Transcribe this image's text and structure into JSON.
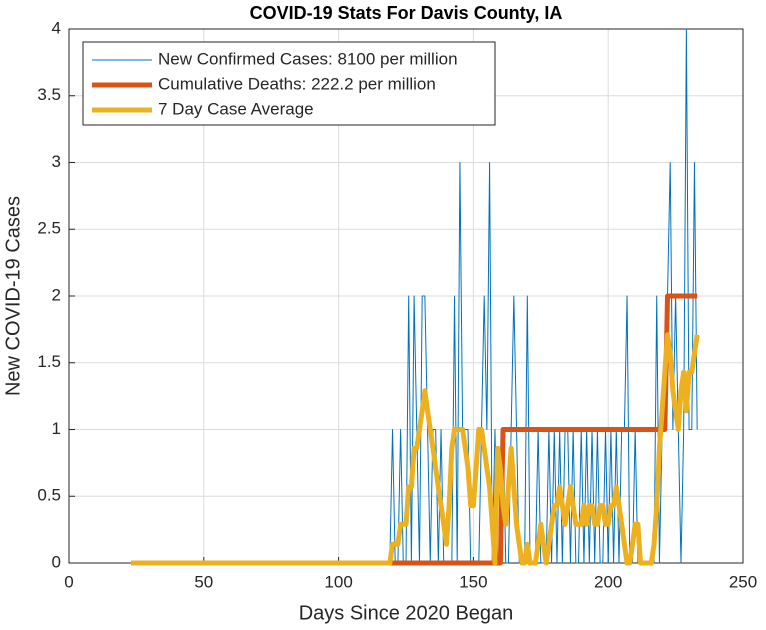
{
  "chart_data": {
    "type": "line",
    "title": "COVID-19 Stats For Davis County, IA",
    "xlabel": "Days Since 2020 Began",
    "ylabel": "New COVID-19 Cases",
    "xlim": [
      0,
      250
    ],
    "xticks": [
      0,
      50,
      100,
      150,
      200,
      250
    ],
    "ylim": [
      0,
      4
    ],
    "yticks": [
      0,
      0.5,
      1,
      1.5,
      2,
      2.5,
      3,
      3.5,
      4
    ],
    "grid": true,
    "legend": "upper left",
    "x": [
      23,
      24,
      25,
      26,
      27,
      28,
      29,
      30,
      31,
      32,
      33,
      34,
      35,
      36,
      37,
      38,
      39,
      40,
      41,
      42,
      43,
      44,
      45,
      46,
      47,
      48,
      49,
      50,
      51,
      52,
      53,
      54,
      55,
      56,
      57,
      58,
      59,
      60,
      61,
      62,
      63,
      64,
      65,
      66,
      67,
      68,
      69,
      70,
      71,
      72,
      73,
      74,
      75,
      76,
      77,
      78,
      79,
      80,
      81,
      82,
      83,
      84,
      85,
      86,
      87,
      88,
      89,
      90,
      91,
      92,
      93,
      94,
      95,
      96,
      97,
      98,
      99,
      100,
      101,
      102,
      103,
      104,
      105,
      106,
      107,
      108,
      109,
      110,
      111,
      112,
      113,
      114,
      115,
      116,
      117,
      118,
      119,
      120,
      121,
      122,
      123,
      124,
      125,
      126,
      127,
      128,
      129,
      130,
      131,
      132,
      133,
      134,
      135,
      136,
      137,
      138,
      139,
      140,
      141,
      142,
      143,
      144,
      145,
      146,
      147,
      148,
      149,
      150,
      151,
      152,
      153,
      154,
      155,
      156,
      157,
      158,
      159,
      160,
      161,
      162,
      163,
      164,
      165,
      166,
      167,
      168,
      169,
      170,
      171,
      172,
      173,
      174,
      175,
      176,
      177,
      178,
      179,
      180,
      181,
      182,
      183,
      184,
      185,
      186,
      187,
      188,
      189,
      190,
      191,
      192,
      193,
      194,
      195,
      196,
      197,
      198,
      199,
      200,
      201,
      202,
      203,
      204,
      205,
      206,
      207,
      208,
      209,
      210,
      211,
      212,
      213,
      214,
      215,
      216,
      217,
      218,
      219,
      220,
      221,
      222,
      223,
      224,
      225,
      226,
      227,
      228,
      229,
      230,
      231,
      232,
      233
    ],
    "series": [
      {
        "name": "New Confirmed Cases: 8100 per million",
        "color": "#0072bd",
        "width": 1,
        "values": [
          0,
          0,
          0,
          0,
          0,
          0,
          0,
          0,
          0,
          0,
          0,
          0,
          0,
          0,
          0,
          0,
          0,
          0,
          0,
          0,
          0,
          0,
          0,
          0,
          0,
          0,
          0,
          0,
          0,
          0,
          0,
          0,
          0,
          0,
          0,
          0,
          0,
          0,
          0,
          0,
          0,
          0,
          0,
          0,
          0,
          0,
          0,
          0,
          0,
          0,
          0,
          0,
          0,
          0,
          0,
          0,
          0,
          0,
          0,
          0,
          0,
          0,
          0,
          0,
          0,
          0,
          0,
          0,
          0,
          0,
          0,
          0,
          0,
          0,
          0,
          0,
          0,
          0,
          0,
          0,
          0,
          0,
          0,
          0,
          0,
          0,
          0,
          0,
          0,
          0,
          0,
          0,
          0,
          0,
          0,
          0,
          0,
          1,
          0,
          0,
          1,
          0,
          0,
          2,
          0,
          2,
          1,
          0,
          2,
          2,
          1,
          0,
          1,
          1,
          0,
          1,
          0,
          0,
          0,
          0,
          2,
          0,
          3,
          1,
          1,
          1,
          0,
          0,
          0,
          0,
          1,
          2,
          1,
          3,
          0,
          1,
          0,
          0,
          1,
          0,
          0,
          1,
          2,
          1,
          0,
          0,
          0,
          2,
          0,
          0,
          0,
          1,
          0,
          0,
          0,
          1,
          0,
          1,
          0,
          1,
          0,
          1,
          1,
          0,
          1,
          0,
          0,
          1,
          0,
          1,
          0,
          1,
          0,
          1,
          0,
          0,
          1,
          0,
          1,
          0,
          1,
          0,
          1,
          1,
          2,
          0,
          0,
          1,
          0,
          0,
          0,
          0,
          0,
          0,
          0,
          2,
          0,
          1,
          1,
          2,
          3,
          1,
          2,
          1,
          0,
          1,
          4,
          1,
          1,
          3,
          1
        ]
      },
      {
        "name": "Cumulative Deaths: 222.2 per million",
        "color": "#d95319",
        "width": 5,
        "values": [
          0,
          0,
          0,
          0,
          0,
          0,
          0,
          0,
          0,
          0,
          0,
          0,
          0,
          0,
          0,
          0,
          0,
          0,
          0,
          0,
          0,
          0,
          0,
          0,
          0,
          0,
          0,
          0,
          0,
          0,
          0,
          0,
          0,
          0,
          0,
          0,
          0,
          0,
          0,
          0,
          0,
          0,
          0,
          0,
          0,
          0,
          0,
          0,
          0,
          0,
          0,
          0,
          0,
          0,
          0,
          0,
          0,
          0,
          0,
          0,
          0,
          0,
          0,
          0,
          0,
          0,
          0,
          0,
          0,
          0,
          0,
          0,
          0,
          0,
          0,
          0,
          0,
          0,
          0,
          0,
          0,
          0,
          0,
          0,
          0,
          0,
          0,
          0,
          0,
          0,
          0,
          0,
          0,
          0,
          0,
          0,
          0,
          0,
          0,
          0,
          0,
          0,
          0,
          0,
          0,
          0,
          0,
          0,
          0,
          0,
          0,
          0,
          0,
          0,
          0,
          0,
          0,
          0,
          0,
          0,
          0,
          0,
          0,
          0,
          0,
          0,
          0,
          0,
          0,
          0,
          0,
          0,
          0,
          0,
          0,
          0,
          0,
          0,
          1,
          1,
          1,
          1,
          1,
          1,
          1,
          1,
          1,
          1,
          1,
          1,
          1,
          1,
          1,
          1,
          1,
          1,
          1,
          1,
          1,
          1,
          1,
          1,
          1,
          1,
          1,
          1,
          1,
          1,
          1,
          1,
          1,
          1,
          1,
          1,
          1,
          1,
          1,
          1,
          1,
          1,
          1,
          1,
          1,
          1,
          1,
          1,
          1,
          1,
          1,
          1,
          1,
          1,
          1,
          1,
          1,
          1,
          1,
          1,
          1,
          2,
          2,
          2,
          2,
          2,
          2,
          2,
          2,
          2,
          2,
          2,
          2
        ]
      },
      {
        "name": "7 Day Case Average",
        "color": "#edb120",
        "width": 5,
        "values": [
          0,
          0,
          0,
          0,
          0,
          0,
          0,
          0,
          0,
          0,
          0,
          0,
          0,
          0,
          0,
          0,
          0,
          0,
          0,
          0,
          0,
          0,
          0,
          0,
          0,
          0,
          0,
          0,
          0,
          0,
          0,
          0,
          0,
          0,
          0,
          0,
          0,
          0,
          0,
          0,
          0,
          0,
          0,
          0,
          0,
          0,
          0,
          0,
          0,
          0,
          0,
          0,
          0,
          0,
          0,
          0,
          0,
          0,
          0,
          0,
          0,
          0,
          0,
          0,
          0,
          0,
          0,
          0,
          0,
          0,
          0,
          0,
          0,
          0,
          0,
          0,
          0,
          0,
          0,
          0,
          0,
          0,
          0,
          0,
          0,
          0,
          0,
          0,
          0,
          0,
          0,
          0,
          0,
          0,
          0,
          0,
          0,
          0.14,
          0.14,
          0.14,
          0.29,
          0.29,
          0.29,
          0.57,
          0.57,
          0.86,
          0.86,
          1,
          1.14,
          1.29,
          1.14,
          1,
          0.86,
          0.71,
          0.57,
          0.43,
          0.29,
          0.14,
          0.43,
          0.86,
          1,
          1,
          1,
          1,
          0.86,
          0.71,
          0.43,
          0.43,
          0.71,
          1,
          1,
          0.86,
          0.71,
          0.57,
          0.29,
          0,
          0.86,
          0.71,
          0.43,
          0.29,
          0.57,
          0.86,
          0.57,
          0.29,
          0.14,
          0,
          0,
          0.14,
          0,
          0,
          0,
          0.14,
          0.29,
          0.14,
          0,
          0.14,
          0.29,
          0.43,
          0.43,
          0.57,
          0.43,
          0.29,
          0.43,
          0.57,
          0.43,
          0.29,
          0.29,
          0.29,
          0.43,
          0.29,
          0.43,
          0.43,
          0.29,
          0.29,
          0.43,
          0.43,
          0.29,
          0.29,
          0.43,
          0.43,
          0.57,
          0.43,
          0.29,
          0.14,
          0,
          0,
          0.14,
          0.29,
          0.29,
          0,
          0,
          0,
          0,
          0,
          0.14,
          0.43,
          0.86,
          1.14,
          1.43,
          1.71,
          1.57,
          1.29,
          1.14,
          1,
          1.29,
          1.43,
          1.14,
          1.43,
          1.43,
          1.57,
          1.71
        ]
      }
    ]
  }
}
